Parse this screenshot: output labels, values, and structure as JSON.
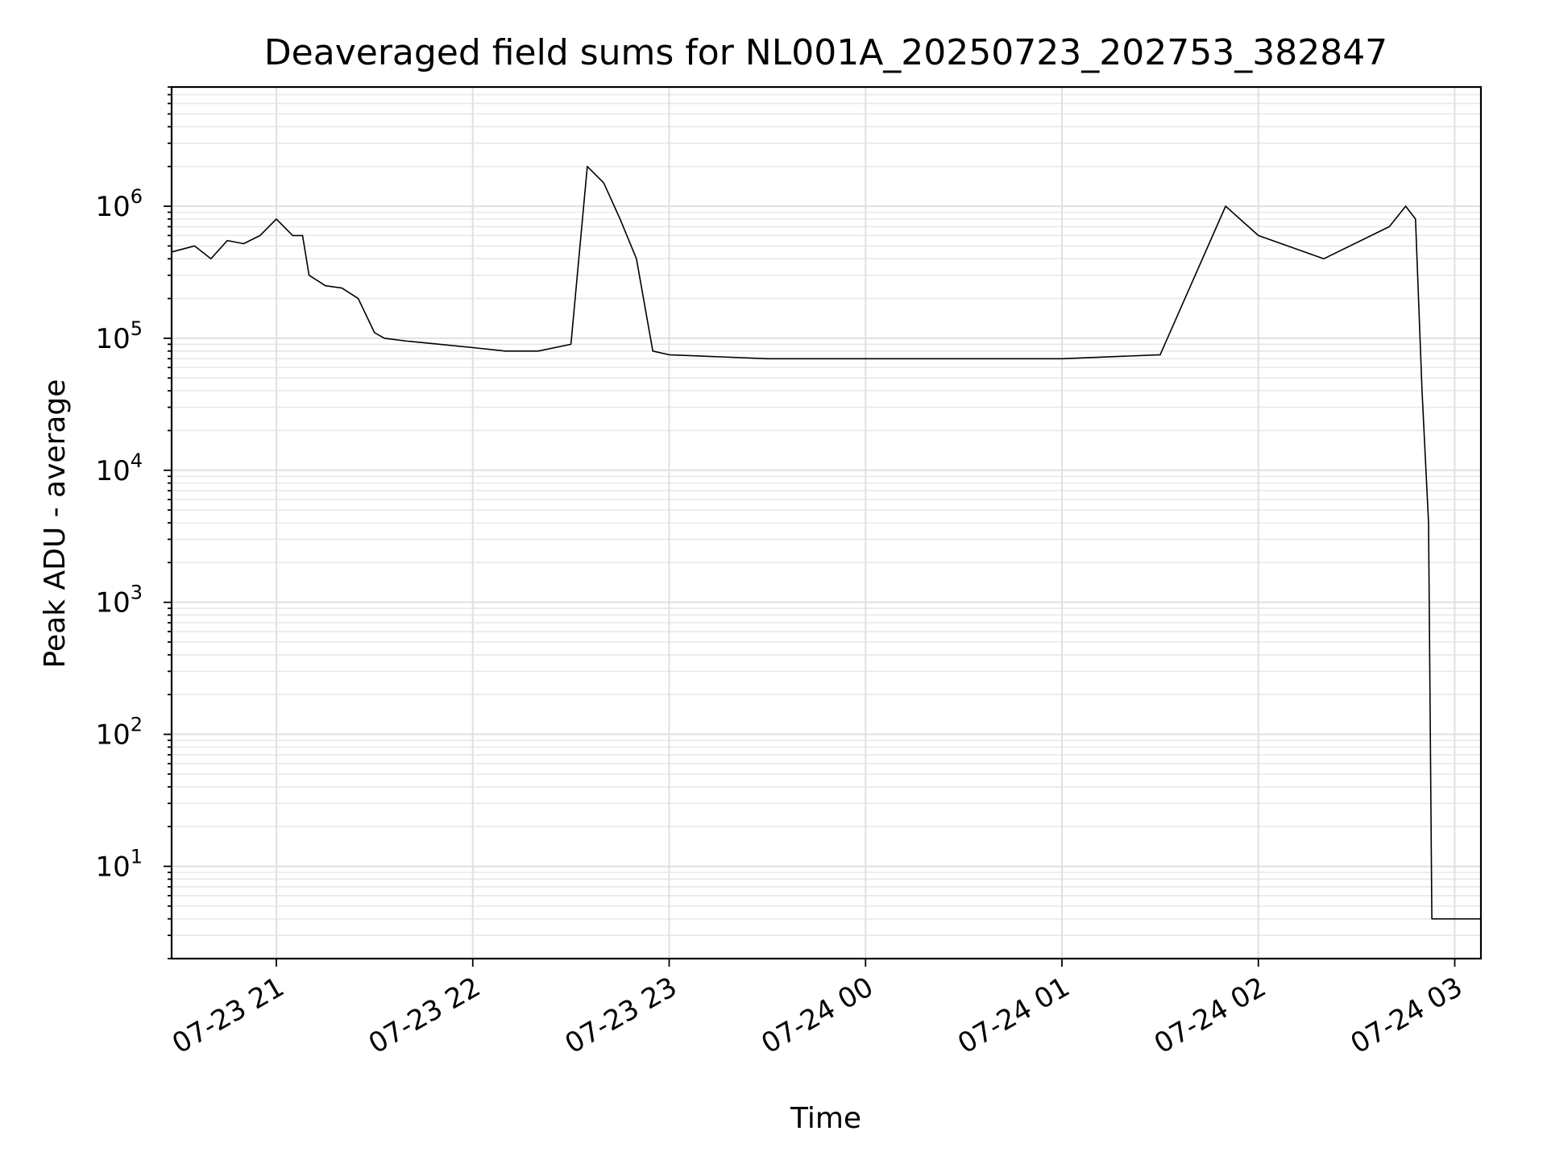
{
  "chart_data": {
    "type": "line",
    "title": "Deaveraged field sums for NL001A_20250723_202753_382847",
    "xlabel": "Time",
    "ylabel": "Peak ADU - average",
    "yscale": "log",
    "grid": true,
    "xlim": [
      "2025-07-23 20:28",
      "2025-07-24 03:08"
    ],
    "ylim": [
      2,
      8000000
    ],
    "x_ticks": [
      {
        "t": "2025-07-23 21:00",
        "label": "07-23 21"
      },
      {
        "t": "2025-07-23 22:00",
        "label": "07-23 22"
      },
      {
        "t": "2025-07-23 23:00",
        "label": "07-23 23"
      },
      {
        "t": "2025-07-24 00:00",
        "label": "07-24 00"
      },
      {
        "t": "2025-07-24 01:00",
        "label": "07-24 01"
      },
      {
        "t": "2025-07-24 02:00",
        "label": "07-24 02"
      },
      {
        "t": "2025-07-24 03:00",
        "label": "07-24 03"
      }
    ],
    "y_ticks": [
      {
        "value": 10,
        "base": "10",
        "exp": "1"
      },
      {
        "value": 100,
        "base": "10",
        "exp": "2"
      },
      {
        "value": 1000,
        "base": "10",
        "exp": "3"
      },
      {
        "value": 10000,
        "base": "10",
        "exp": "4"
      },
      {
        "value": 100000,
        "base": "10",
        "exp": "5"
      },
      {
        "value": 1000000,
        "base": "10",
        "exp": "6"
      }
    ],
    "series": [
      {
        "color": "#000000",
        "x": [
          "2025-07-23 20:28",
          "2025-07-23 20:35",
          "2025-07-23 20:40",
          "2025-07-23 20:45",
          "2025-07-23 20:50",
          "2025-07-23 20:55",
          "2025-07-23 21:00",
          "2025-07-23 21:05",
          "2025-07-23 21:08",
          "2025-07-23 21:10",
          "2025-07-23 21:15",
          "2025-07-23 21:20",
          "2025-07-23 21:25",
          "2025-07-23 21:30",
          "2025-07-23 21:33",
          "2025-07-23 21:40",
          "2025-07-23 21:50",
          "2025-07-23 22:00",
          "2025-07-23 22:10",
          "2025-07-23 22:20",
          "2025-07-23 22:30",
          "2025-07-23 22:35",
          "2025-07-23 22:40",
          "2025-07-23 22:45",
          "2025-07-23 22:50",
          "2025-07-23 22:55",
          "2025-07-23 23:00",
          "2025-07-23 23:30",
          "2025-07-24 00:00",
          "2025-07-24 00:30",
          "2025-07-24 01:00",
          "2025-07-24 01:30",
          "2025-07-24 01:50",
          "2025-07-24 02:00",
          "2025-07-24 02:20",
          "2025-07-24 02:40",
          "2025-07-24 02:45",
          "2025-07-24 02:48",
          "2025-07-24 02:50",
          "2025-07-24 02:52",
          "2025-07-24 02:53",
          "2025-07-24 03:00",
          "2025-07-24 03:08"
        ],
        "y": [
          450000,
          500000,
          400000,
          550000,
          520000,
          600000,
          800000,
          600000,
          600000,
          300000,
          250000,
          240000,
          200000,
          110000,
          100000,
          95000,
          90000,
          85000,
          80000,
          80000,
          90000,
          2000000,
          1500000,
          800000,
          400000,
          80000,
          75000,
          70000,
          70000,
          70000,
          70000,
          75000,
          1000000,
          600000,
          400000,
          700000,
          1000000,
          800000,
          40000,
          4000,
          4,
          4,
          4
        ]
      }
    ]
  }
}
